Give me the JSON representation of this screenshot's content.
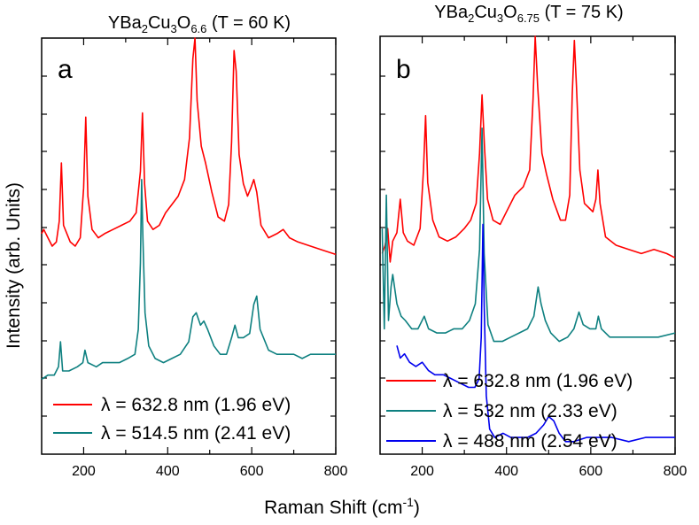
{
  "ylabel": "Intensity (arb. Units)",
  "xlabel": {
    "base": "Raman Shift (cm",
    "sup": "-1",
    "tail": ")"
  },
  "panels": [
    {
      "letter": "a",
      "title": {
        "pre": "YBa",
        "s1": "2",
        "mid": "Cu",
        "s2": "3",
        "o": "O",
        "s3": "6.6",
        "post": " (T = 60 K)"
      },
      "legend": [
        {
          "label": "λ = 632.8 nm (1.96 eV)",
          "color": "#ff0000"
        },
        {
          "label": "λ = 514.5 nm (2.41 eV)",
          "color": "#0e8080"
        }
      ]
    },
    {
      "letter": "b",
      "title": {
        "pre": "YBa",
        "s1": "2",
        "mid": "Cu",
        "s2": "3",
        "o": "O",
        "s3": "6.75",
        "post": " (T = 75 K)"
      },
      "legend": [
        {
          "label": "λ = 632.8 nm (1.96 eV)",
          "color": "#ff0000"
        },
        {
          "label": "λ = 532 nm   (2.33 eV)",
          "color": "#0e8080"
        },
        {
          "label": "λ = 488 nm   (2.54 eV)",
          "color": "#0000ee"
        }
      ]
    }
  ],
  "chart_data": [
    {
      "type": "line",
      "panel": "a",
      "xlim": [
        100,
        800
      ],
      "ylim": [
        0,
        10
      ],
      "xticks": [
        200,
        400,
        600,
        800
      ],
      "grid": false,
      "legend_position": "bottom",
      "series": [
        {
          "name": "λ = 632.8 nm (1.96 eV)",
          "color": "#ff0000",
          "points": [
            [
              100,
              5.3
            ],
            [
              105,
              5.4
            ],
            [
              115,
              5.2
            ],
            [
              125,
              5.0
            ],
            [
              135,
              5.1
            ],
            [
              142,
              5.6
            ],
            [
              147,
              7.0
            ],
            [
              152,
              5.5
            ],
            [
              160,
              5.3
            ],
            [
              168,
              5.1
            ],
            [
              180,
              5.0
            ],
            [
              192,
              5.2
            ],
            [
              200,
              6.4
            ],
            [
              205,
              8.1
            ],
            [
              210,
              6.2
            ],
            [
              220,
              5.4
            ],
            [
              235,
              5.2
            ],
            [
              250,
              5.3
            ],
            [
              270,
              5.4
            ],
            [
              290,
              5.5
            ],
            [
              310,
              5.6
            ],
            [
              325,
              5.8
            ],
            [
              335,
              6.8
            ],
            [
              340,
              8.2
            ],
            [
              345,
              6.5
            ],
            [
              352,
              5.6
            ],
            [
              365,
              5.4
            ],
            [
              380,
              5.5
            ],
            [
              395,
              5.8
            ],
            [
              410,
              6.0
            ],
            [
              425,
              6.2
            ],
            [
              440,
              6.6
            ],
            [
              452,
              7.6
            ],
            [
              460,
              9.5
            ],
            [
              465,
              10.0
            ],
            [
              470,
              8.5
            ],
            [
              480,
              7.4
            ],
            [
              490,
              7.0
            ],
            [
              505,
              6.3
            ],
            [
              520,
              5.7
            ],
            [
              535,
              5.6
            ],
            [
              545,
              6.0
            ],
            [
              552,
              7.5
            ],
            [
              558,
              9.7
            ],
            [
              563,
              9.2
            ],
            [
              570,
              7.2
            ],
            [
              580,
              6.5
            ],
            [
              590,
              6.2
            ],
            [
              598,
              6.4
            ],
            [
              605,
              6.6
            ],
            [
              612,
              6.3
            ],
            [
              622,
              5.5
            ],
            [
              640,
              5.2
            ],
            [
              660,
              5.3
            ],
            [
              675,
              5.4
            ],
            [
              690,
              5.2
            ],
            [
              710,
              5.1
            ],
            [
              740,
              5.0
            ],
            [
              770,
              4.9
            ],
            [
              800,
              4.8
            ]
          ]
        },
        {
          "name": "λ = 514.5 nm (2.41 eV)",
          "color": "#0e8080",
          "points": [
            [
              100,
              1.8
            ],
            [
              115,
              1.9
            ],
            [
              130,
              1.9
            ],
            [
              140,
              2.1
            ],
            [
              145,
              2.7
            ],
            [
              150,
              2.0
            ],
            [
              165,
              2.0
            ],
            [
              185,
              2.1
            ],
            [
              198,
              2.2
            ],
            [
              203,
              2.5
            ],
            [
              210,
              2.2
            ],
            [
              230,
              2.1
            ],
            [
              245,
              2.2
            ],
            [
              265,
              2.2
            ],
            [
              285,
              2.2
            ],
            [
              305,
              2.3
            ],
            [
              322,
              2.4
            ],
            [
              330,
              3.0
            ],
            [
              335,
              4.6
            ],
            [
              338,
              6.6
            ],
            [
              341,
              5.2
            ],
            [
              346,
              3.4
            ],
            [
              355,
              2.6
            ],
            [
              370,
              2.3
            ],
            [
              390,
              2.2
            ],
            [
              410,
              2.3
            ],
            [
              430,
              2.4
            ],
            [
              450,
              2.7
            ],
            [
              460,
              3.3
            ],
            [
              468,
              3.4
            ],
            [
              478,
              3.1
            ],
            [
              486,
              3.2
            ],
            [
              495,
              3.0
            ],
            [
              510,
              2.6
            ],
            [
              525,
              2.4
            ],
            [
              540,
              2.4
            ],
            [
              552,
              2.8
            ],
            [
              560,
              3.1
            ],
            [
              568,
              2.8
            ],
            [
              580,
              2.8
            ],
            [
              595,
              2.9
            ],
            [
              605,
              3.6
            ],
            [
              612,
              3.8
            ],
            [
              620,
              3.0
            ],
            [
              640,
              2.5
            ],
            [
              660,
              2.4
            ],
            [
              680,
              2.4
            ],
            [
              700,
              2.4
            ],
            [
              720,
              2.3
            ],
            [
              740,
              2.4
            ],
            [
              760,
              2.4
            ],
            [
              780,
              2.4
            ],
            [
              800,
              2.4
            ]
          ]
        }
      ]
    },
    {
      "type": "line",
      "panel": "b",
      "xlim": [
        100,
        800
      ],
      "ylim": [
        0,
        10
      ],
      "xticks": [
        200,
        400,
        600,
        800
      ],
      "grid": false,
      "legend_position": "bottom",
      "series": [
        {
          "name": "λ = 632.8 nm (1.96 eV)",
          "color": "#ff0000",
          "points": [
            [
              105,
              4.8
            ],
            [
              112,
              5.0
            ],
            [
              118,
              5.4
            ],
            [
              124,
              4.6
            ],
            [
              130,
              5.1
            ],
            [
              140,
              5.3
            ],
            [
              148,
              6.1
            ],
            [
              155,
              5.3
            ],
            [
              165,
              5.1
            ],
            [
              180,
              5.0
            ],
            [
              195,
              5.4
            ],
            [
              203,
              6.8
            ],
            [
              208,
              8.1
            ],
            [
              213,
              6.5
            ],
            [
              225,
              5.6
            ],
            [
              240,
              5.2
            ],
            [
              260,
              5.1
            ],
            [
              280,
              5.2
            ],
            [
              300,
              5.4
            ],
            [
              315,
              5.6
            ],
            [
              328,
              6.0
            ],
            [
              336,
              7.2
            ],
            [
              342,
              8.6
            ],
            [
              348,
              7.3
            ],
            [
              355,
              6.1
            ],
            [
              368,
              5.6
            ],
            [
              385,
              5.5
            ],
            [
              400,
              5.8
            ],
            [
              420,
              6.2
            ],
            [
              440,
              6.4
            ],
            [
              455,
              6.8
            ],
            [
              463,
              8.5
            ],
            [
              468,
              10.0
            ],
            [
              474,
              8.8
            ],
            [
              484,
              7.2
            ],
            [
              495,
              6.7
            ],
            [
              510,
              6.1
            ],
            [
              528,
              5.6
            ],
            [
              540,
              5.6
            ],
            [
              550,
              6.2
            ],
            [
              556,
              8.6
            ],
            [
              561,
              9.9
            ],
            [
              566,
              8.8
            ],
            [
              574,
              6.8
            ],
            [
              585,
              6.0
            ],
            [
              595,
              5.9
            ],
            [
              605,
              5.8
            ],
            [
              612,
              6.1
            ],
            [
              617,
              6.8
            ],
            [
              622,
              6.0
            ],
            [
              635,
              5.2
            ],
            [
              660,
              5.0
            ],
            [
              690,
              4.9
            ],
            [
              720,
              4.8
            ],
            [
              750,
              4.9
            ],
            [
              780,
              4.8
            ],
            [
              800,
              4.7
            ]
          ]
        },
        {
          "name": "λ = 532 nm   (2.33 eV)",
          "color": "#0e8080",
          "points": [
            [
              105,
              5.4
            ],
            [
              110,
              3.0
            ],
            [
              115,
              6.2
            ],
            [
              120,
              3.2
            ],
            [
              126,
              4.0
            ],
            [
              130,
              4.3
            ],
            [
              140,
              3.6
            ],
            [
              150,
              3.3
            ],
            [
              160,
              3.2
            ],
            [
              175,
              3.0
            ],
            [
              190,
              3.0
            ],
            [
              205,
              3.3
            ],
            [
              215,
              3.0
            ],
            [
              235,
              2.9
            ],
            [
              255,
              2.9
            ],
            [
              275,
              3.0
            ],
            [
              295,
              3.0
            ],
            [
              312,
              3.2
            ],
            [
              326,
              3.6
            ],
            [
              336,
              4.9
            ],
            [
              342,
              7.8
            ],
            [
              347,
              4.8
            ],
            [
              356,
              3.1
            ],
            [
              370,
              2.7
            ],
            [
              390,
              2.7
            ],
            [
              410,
              2.8
            ],
            [
              430,
              2.9
            ],
            [
              450,
              3.0
            ],
            [
              465,
              3.3
            ],
            [
              475,
              4.0
            ],
            [
              482,
              3.6
            ],
            [
              492,
              3.2
            ],
            [
              505,
              2.9
            ],
            [
              525,
              2.7
            ],
            [
              545,
              2.8
            ],
            [
              560,
              3.0
            ],
            [
              572,
              3.4
            ],
            [
              582,
              3.1
            ],
            [
              598,
              3.0
            ],
            [
              612,
              3.0
            ],
            [
              618,
              3.3
            ],
            [
              625,
              3.0
            ],
            [
              645,
              2.8
            ],
            [
              680,
              2.8
            ],
            [
              720,
              2.8
            ],
            [
              760,
              2.8
            ],
            [
              800,
              2.9
            ]
          ]
        },
        {
          "name": "λ = 488 nm   (2.54 eV)",
          "color": "#0000ee",
          "points": [
            [
              140,
              2.6
            ],
            [
              148,
              2.3
            ],
            [
              158,
              2.4
            ],
            [
              170,
              2.2
            ],
            [
              185,
              2.1
            ],
            [
              200,
              2.2
            ],
            [
              215,
              2.0
            ],
            [
              230,
              1.9
            ],
            [
              250,
              1.9
            ],
            [
              270,
              1.8
            ],
            [
              290,
              1.7
            ],
            [
              310,
              1.6
            ],
            [
              325,
              1.6
            ],
            [
              335,
              1.8
            ],
            [
              340,
              2.8
            ],
            [
              344,
              5.5
            ],
            [
              347,
              3.6
            ],
            [
              352,
              1.4
            ],
            [
              360,
              0.6
            ],
            [
              372,
              0.4
            ],
            [
              392,
              0.5
            ],
            [
              410,
              0.4
            ],
            [
              430,
              0.4
            ],
            [
              450,
              0.4
            ],
            [
              470,
              0.5
            ],
            [
              488,
              0.7
            ],
            [
              500,
              0.9
            ],
            [
              512,
              0.8
            ],
            [
              525,
              0.5
            ],
            [
              540,
              0.3
            ],
            [
              560,
              0.3
            ],
            [
              590,
              0.4
            ],
            [
              620,
              0.4
            ],
            [
              650,
              0.4
            ],
            [
              690,
              0.3
            ],
            [
              730,
              0.4
            ],
            [
              760,
              0.4
            ],
            [
              800,
              0.4
            ]
          ]
        }
      ]
    }
  ]
}
